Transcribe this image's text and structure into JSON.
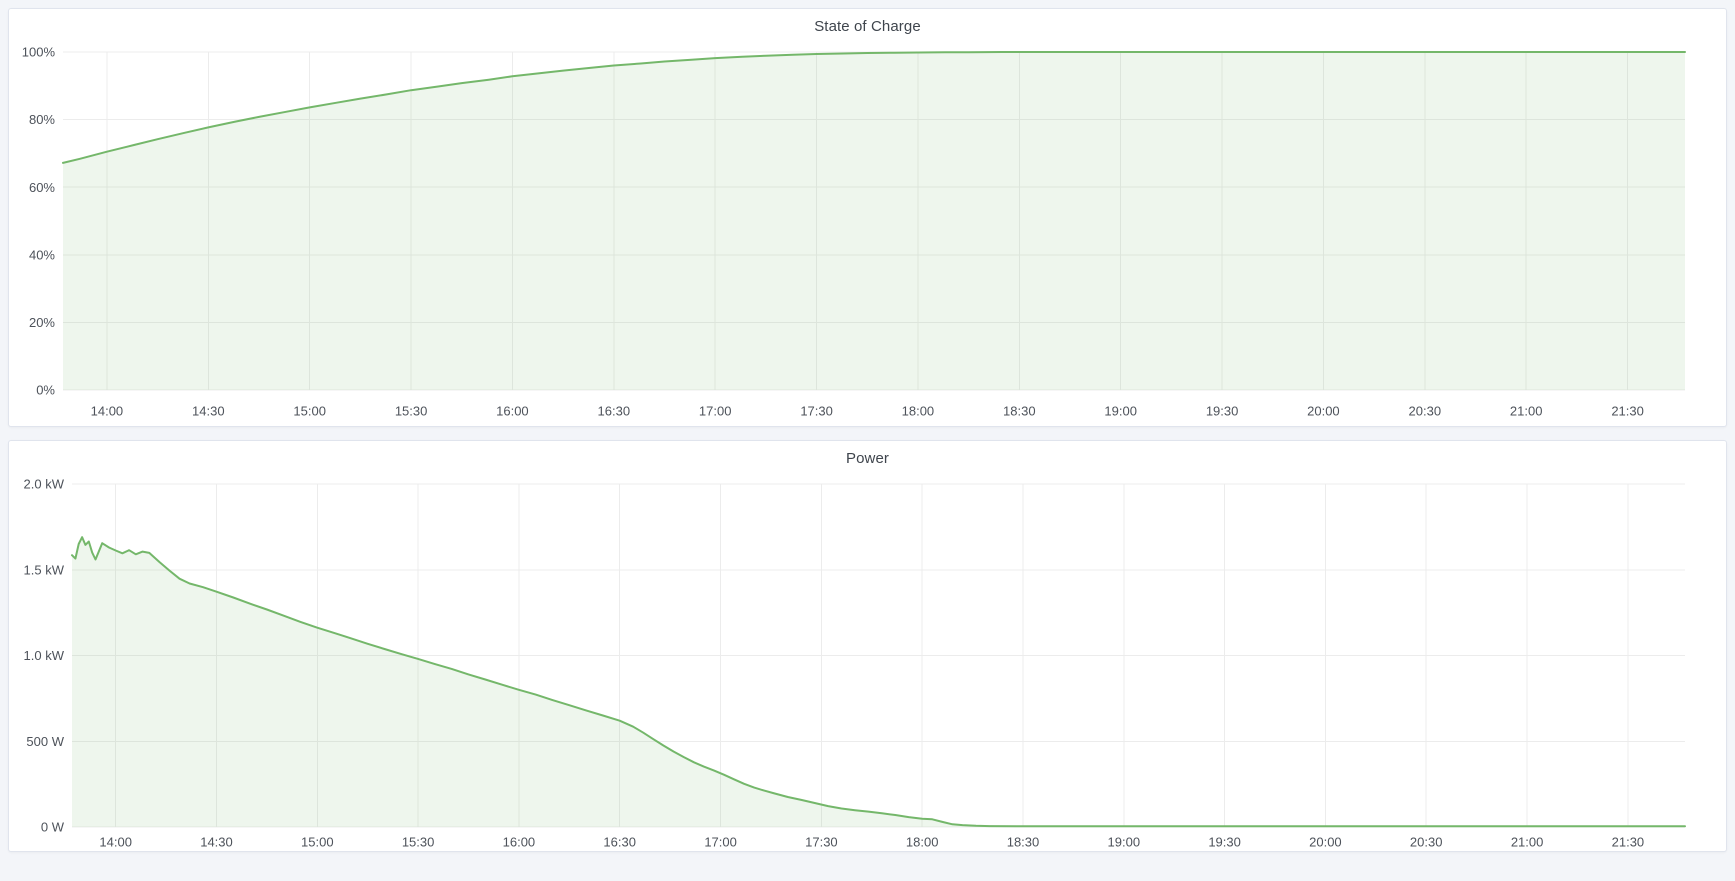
{
  "page": {
    "background": "#f3f5f9",
    "panel_background": "#ffffff",
    "grid_color": "#ececec",
    "tick_label_color": "#4d525a",
    "title_color": "#3f454d"
  },
  "chart_data": [
    {
      "type": "area",
      "title": "State of Charge",
      "xlabel": "",
      "ylabel": "",
      "x_unit": "time-of-day (minutes since midnight)",
      "xlim_minutes": [
        827,
        1307
      ],
      "ylim": [
        0,
        100
      ],
      "grid": true,
      "legend": "none",
      "x_ticks": [
        {
          "minute": 840,
          "label": "14:00"
        },
        {
          "minute": 870,
          "label": "14:30"
        },
        {
          "minute": 900,
          "label": "15:00"
        },
        {
          "minute": 930,
          "label": "15:30"
        },
        {
          "minute": 960,
          "label": "16:00"
        },
        {
          "minute": 990,
          "label": "16:30"
        },
        {
          "minute": 1020,
          "label": "17:00"
        },
        {
          "minute": 1050,
          "label": "17:30"
        },
        {
          "minute": 1080,
          "label": "18:00"
        },
        {
          "minute": 1110,
          "label": "18:30"
        },
        {
          "minute": 1140,
          "label": "19:00"
        },
        {
          "minute": 1170,
          "label": "19:30"
        },
        {
          "minute": 1200,
          "label": "20:00"
        },
        {
          "minute": 1230,
          "label": "20:30"
        },
        {
          "minute": 1260,
          "label": "21:00"
        },
        {
          "minute": 1290,
          "label": "21:30"
        }
      ],
      "y_ticks": [
        {
          "value": 0,
          "label": "0%"
        },
        {
          "value": 20,
          "label": "20%"
        },
        {
          "value": 40,
          "label": "40%"
        },
        {
          "value": 60,
          "label": "60%"
        },
        {
          "value": 80,
          "label": "80%"
        },
        {
          "value": 100,
          "label": "100%"
        }
      ],
      "series": [
        {
          "name": "State of Charge",
          "color": "#74b76a",
          "fill": "rgba(115,184,105,0.12)",
          "points": [
            [
              827,
              67.2
            ],
            [
              832,
              68.4
            ],
            [
              840,
              70.5
            ],
            [
              848,
              72.5
            ],
            [
              855,
              74.2
            ],
            [
              863,
              76.1
            ],
            [
              870,
              77.7
            ],
            [
              878,
              79.4
            ],
            [
              885,
              80.8
            ],
            [
              893,
              82.3
            ],
            [
              900,
              83.6
            ],
            [
              908,
              85.0
            ],
            [
              915,
              86.2
            ],
            [
              923,
              87.5
            ],
            [
              930,
              88.7
            ],
            [
              938,
              89.8
            ],
            [
              945,
              90.8
            ],
            [
              953,
              91.8
            ],
            [
              960,
              92.8
            ],
            [
              968,
              93.7
            ],
            [
              975,
              94.5
            ],
            [
              983,
              95.3
            ],
            [
              990,
              96.0
            ],
            [
              998,
              96.6
            ],
            [
              1005,
              97.2
            ],
            [
              1013,
              97.7
            ],
            [
              1020,
              98.2
            ],
            [
              1028,
              98.6
            ],
            [
              1035,
              98.9
            ],
            [
              1043,
              99.2
            ],
            [
              1050,
              99.4
            ],
            [
              1058,
              99.55
            ],
            [
              1065,
              99.7
            ],
            [
              1073,
              99.8
            ],
            [
              1080,
              99.85
            ],
            [
              1088,
              99.9
            ],
            [
              1095,
              99.95
            ],
            [
              1105,
              100
            ],
            [
              1110,
              100
            ],
            [
              1140,
              100
            ],
            [
              1170,
              100
            ],
            [
              1200,
              100
            ],
            [
              1230,
              100
            ],
            [
              1260,
              100
            ],
            [
              1290,
              100
            ],
            [
              1307,
              100
            ]
          ]
        }
      ]
    },
    {
      "type": "area",
      "title": "Power",
      "xlabel": "",
      "ylabel": "",
      "x_unit": "time-of-day (minutes since midnight)",
      "xlim_minutes": [
        827,
        1307
      ],
      "ylim": [
        0,
        2000
      ],
      "grid": true,
      "legend": "none",
      "x_ticks": [
        {
          "minute": 840,
          "label": "14:00"
        },
        {
          "minute": 870,
          "label": "14:30"
        },
        {
          "minute": 900,
          "label": "15:00"
        },
        {
          "minute": 930,
          "label": "15:30"
        },
        {
          "minute": 960,
          "label": "16:00"
        },
        {
          "minute": 990,
          "label": "16:30"
        },
        {
          "minute": 1020,
          "label": "17:00"
        },
        {
          "minute": 1050,
          "label": "17:30"
        },
        {
          "minute": 1080,
          "label": "18:00"
        },
        {
          "minute": 1110,
          "label": "18:30"
        },
        {
          "minute": 1140,
          "label": "19:00"
        },
        {
          "minute": 1170,
          "label": "19:30"
        },
        {
          "minute": 1200,
          "label": "20:00"
        },
        {
          "minute": 1230,
          "label": "20:30"
        },
        {
          "minute": 1260,
          "label": "21:00"
        },
        {
          "minute": 1290,
          "label": "21:30"
        }
      ],
      "y_ticks": [
        {
          "value": 0,
          "label": "0 W"
        },
        {
          "value": 500,
          "label": "500 W"
        },
        {
          "value": 1000,
          "label": "1.0 kW"
        },
        {
          "value": 1500,
          "label": "1.5 kW"
        },
        {
          "value": 2000,
          "label": "2.0 kW"
        }
      ],
      "series": [
        {
          "name": "Power",
          "color": "#74b76a",
          "fill": "rgba(115,184,105,0.12)",
          "points": [
            [
              827,
              1585
            ],
            [
              828,
              1565
            ],
            [
              829,
              1650
            ],
            [
              830,
              1690
            ],
            [
              831,
              1645
            ],
            [
              832,
              1665
            ],
            [
              833,
              1600
            ],
            [
              834,
              1560
            ],
            [
              836,
              1655
            ],
            [
              838,
              1630
            ],
            [
              840,
              1612
            ],
            [
              842,
              1596
            ],
            [
              844,
              1614
            ],
            [
              846,
              1590
            ],
            [
              848,
              1606
            ],
            [
              850,
              1598
            ],
            [
              853,
              1545
            ],
            [
              856,
              1495
            ],
            [
              859,
              1448
            ],
            [
              862,
              1420
            ],
            [
              866,
              1398
            ],
            [
              870,
              1372
            ],
            [
              875,
              1338
            ],
            [
              880,
              1302
            ],
            [
              885,
              1268
            ],
            [
              890,
              1232
            ],
            [
              895,
              1196
            ],
            [
              900,
              1162
            ],
            [
              905,
              1132
            ],
            [
              910,
              1100
            ],
            [
              915,
              1068
            ],
            [
              920,
              1038
            ],
            [
              925,
              1008
            ],
            [
              930,
              980
            ],
            [
              935,
              950
            ],
            [
              940,
              922
            ],
            [
              945,
              890
            ],
            [
              950,
              860
            ],
            [
              955,
              830
            ],
            [
              960,
              800
            ],
            [
              965,
              772
            ],
            [
              970,
              740
            ],
            [
              975,
              710
            ],
            [
              980,
              680
            ],
            [
              985,
              650
            ],
            [
              990,
              620
            ],
            [
              994,
              585
            ],
            [
              997,
              550
            ],
            [
              1000,
              512
            ],
            [
              1003,
              475
            ],
            [
              1006,
              440
            ],
            [
              1009,
              408
            ],
            [
              1012,
              378
            ],
            [
              1015,
              352
            ],
            [
              1018,
              330
            ],
            [
              1021,
              305
            ],
            [
              1024,
              278
            ],
            [
              1027,
              252
            ],
            [
              1030,
              230
            ],
            [
              1033,
              212
            ],
            [
              1036,
              196
            ],
            [
              1040,
              175
            ],
            [
              1044,
              158
            ],
            [
              1048,
              140
            ],
            [
              1052,
              122
            ],
            [
              1056,
              108
            ],
            [
              1060,
              98
            ],
            [
              1064,
              90
            ],
            [
              1068,
              80
            ],
            [
              1072,
              70
            ],
            [
              1076,
              58
            ],
            [
              1080,
              48
            ],
            [
              1083,
              45
            ],
            [
              1086,
              30
            ],
            [
              1089,
              16
            ],
            [
              1092,
              11
            ],
            [
              1096,
              7
            ],
            [
              1100,
              5
            ],
            [
              1110,
              4
            ],
            [
              1140,
              4
            ],
            [
              1170,
              4
            ],
            [
              1200,
              4
            ],
            [
              1230,
              4
            ],
            [
              1260,
              4
            ],
            [
              1290,
              4
            ],
            [
              1307,
              4
            ]
          ]
        }
      ]
    }
  ]
}
